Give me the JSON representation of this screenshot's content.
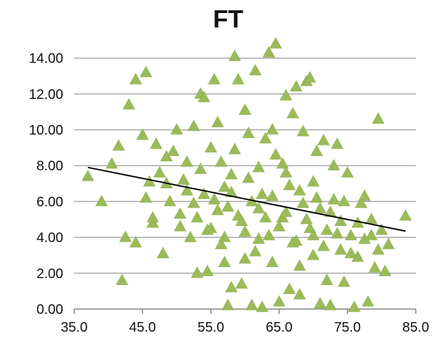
{
  "chart_data": {
    "type": "scatter",
    "title": "FT",
    "xlabel": "",
    "ylabel": "",
    "xlim": [
      35,
      85
    ],
    "ylim": [
      0,
      15
    ],
    "x_ticks": [
      "35.0",
      "45.0",
      "55.0",
      "65.0",
      "75.0",
      "85.0"
    ],
    "y_ticks": [
      "0.00",
      "2.00",
      "4.00",
      "6.00",
      "8.00",
      "10.00",
      "12.00",
      "14.00"
    ],
    "grid": "horizontal",
    "legend": "none",
    "marker": "triangle",
    "colors": {
      "points": "#9BBB59",
      "trendline": "#000000",
      "grid": "#A6A6A6",
      "axis": "#808080"
    },
    "trendline": {
      "type": "linear",
      "points": [
        [
          37.0,
          7.9
        ],
        [
          83.5,
          4.35
        ]
      ]
    },
    "series": [
      {
        "points": [
          [
            37.0,
            7.4
          ],
          [
            39.0,
            6.0
          ],
          [
            40.5,
            8.1
          ],
          [
            41.5,
            9.1
          ],
          [
            42.0,
            1.6
          ],
          [
            42.5,
            4.0
          ],
          [
            43.0,
            11.4
          ],
          [
            44.0,
            12.8
          ],
          [
            44.0,
            3.7
          ],
          [
            45.0,
            9.7
          ],
          [
            45.5,
            13.2
          ],
          [
            45.5,
            6.2
          ],
          [
            46.0,
            7.1
          ],
          [
            46.5,
            4.8
          ],
          [
            47.0,
            9.2
          ],
          [
            47.5,
            7.6
          ],
          [
            48.0,
            3.1
          ],
          [
            48.5,
            8.5
          ],
          [
            49.0,
            6.0
          ],
          [
            49.5,
            8.8
          ],
          [
            50.0,
            10.0
          ],
          [
            50.5,
            5.3
          ],
          [
            51.0,
            7.2
          ],
          [
            51.5,
            6.6
          ],
          [
            52.0,
            4.0
          ],
          [
            52.5,
            10.2
          ],
          [
            53.0,
            2.0
          ],
          [
            53.5,
            12.0
          ],
          [
            54.0,
            11.8
          ],
          [
            54.5,
            2.1
          ],
          [
            55.0,
            9.0
          ],
          [
            55.5,
            12.8
          ],
          [
            56.0,
            10.4
          ],
          [
            56.5,
            8.2
          ],
          [
            57.0,
            6.8
          ],
          [
            57.5,
            0.2
          ],
          [
            58.0,
            1.2
          ],
          [
            58.5,
            14.1
          ],
          [
            59.0,
            12.8
          ],
          [
            59.5,
            1.4
          ],
          [
            60.0,
            11.1
          ],
          [
            60.5,
            9.8
          ],
          [
            61.0,
            0.2
          ],
          [
            61.5,
            13.3
          ],
          [
            62.0,
            5.6
          ],
          [
            62.5,
            0.1
          ],
          [
            63.0,
            9.5
          ],
          [
            63.5,
            14.3
          ],
          [
            64.0,
            10.0
          ],
          [
            64.5,
            14.8
          ],
          [
            65.0,
            0.4
          ],
          [
            65.5,
            8.1
          ],
          [
            66.0,
            11.9
          ],
          [
            66.5,
            1.1
          ],
          [
            67.0,
            10.9
          ],
          [
            67.5,
            12.4
          ],
          [
            68.0,
            0.8
          ],
          [
            68.5,
            9.9
          ],
          [
            69.0,
            12.7
          ],
          [
            69.5,
            12.9
          ],
          [
            70.0,
            7.1
          ],
          [
            70.5,
            8.8
          ],
          [
            71.0,
            0.3
          ],
          [
            71.5,
            9.4
          ],
          [
            72.0,
            1.6
          ],
          [
            72.5,
            0.2
          ],
          [
            73.0,
            8.0
          ],
          [
            73.5,
            9.2
          ],
          [
            74.0,
            3.3
          ],
          [
            74.5,
            1.5
          ],
          [
            75.0,
            7.6
          ],
          [
            75.5,
            4.1
          ],
          [
            76.0,
            0.1
          ],
          [
            76.5,
            2.9
          ],
          [
            77.0,
            5.9
          ],
          [
            77.5,
            6.3
          ],
          [
            78.0,
            0.4
          ],
          [
            78.5,
            5.0
          ],
          [
            79.0,
            2.3
          ],
          [
            79.5,
            10.6
          ],
          [
            80.0,
            4.4
          ],
          [
            80.5,
            2.1
          ],
          [
            81.0,
            3.6
          ],
          [
            83.5,
            5.2
          ],
          [
            46.5,
            5.1
          ],
          [
            48.5,
            7.0
          ],
          [
            50.5,
            4.6
          ],
          [
            51.5,
            8.2
          ],
          [
            52.5,
            5.9
          ],
          [
            53.5,
            7.8
          ],
          [
            54.5,
            4.4
          ],
          [
            55.5,
            6.1
          ],
          [
            56.5,
            3.6
          ],
          [
            57.5,
            5.7
          ],
          [
            58.5,
            8.9
          ],
          [
            59.5,
            4.9
          ],
          [
            60.5,
            7.3
          ],
          [
            61.5,
            3.2
          ],
          [
            62.5,
            6.4
          ],
          [
            63.5,
            4.1
          ],
          [
            64.5,
            8.6
          ],
          [
            65.5,
            5.1
          ],
          [
            66.5,
            6.9
          ],
          [
            67.5,
            3.8
          ],
          [
            68.5,
            5.9
          ],
          [
            69.5,
            4.5
          ],
          [
            70.5,
            6.2
          ],
          [
            71.5,
            3.5
          ],
          [
            72.5,
            5.4
          ],
          [
            73.5,
            4.2
          ],
          [
            74.5,
            6.0
          ],
          [
            75.5,
            3.1
          ],
          [
            76.5,
            4.8
          ],
          [
            77.5,
            3.9
          ],
          [
            78.5,
            4.1
          ],
          [
            79.5,
            3.3
          ],
          [
            55.0,
            4.5
          ],
          [
            56.0,
            5.5
          ],
          [
            57.0,
            4.0
          ],
          [
            58.0,
            6.5
          ],
          [
            59.0,
            5.2
          ],
          [
            60.0,
            4.3
          ],
          [
            61.0,
            6.0
          ],
          [
            62.0,
            3.9
          ],
          [
            63.0,
            5.1
          ],
          [
            64.0,
            6.3
          ],
          [
            65.0,
            4.6
          ],
          [
            66.0,
            5.4
          ],
          [
            67.0,
            3.7
          ],
          [
            68.0,
            6.6
          ],
          [
            69.0,
            5.0
          ],
          [
            70.0,
            4.1
          ],
          [
            71.0,
            5.6
          ],
          [
            72.0,
            4.4
          ],
          [
            73.0,
            6.1
          ],
          [
            74.0,
            4.9
          ],
          [
            53.0,
            5.1
          ],
          [
            54.0,
            6.4
          ],
          [
            60.0,
            2.8
          ],
          [
            64.0,
            2.6
          ],
          [
            68.0,
            2.4
          ],
          [
            66.0,
            7.6
          ],
          [
            62.0,
            7.9
          ],
          [
            58.0,
            7.5
          ],
          [
            70.0,
            3.0
          ],
          [
            57.0,
            2.6
          ]
        ]
      }
    ]
  }
}
